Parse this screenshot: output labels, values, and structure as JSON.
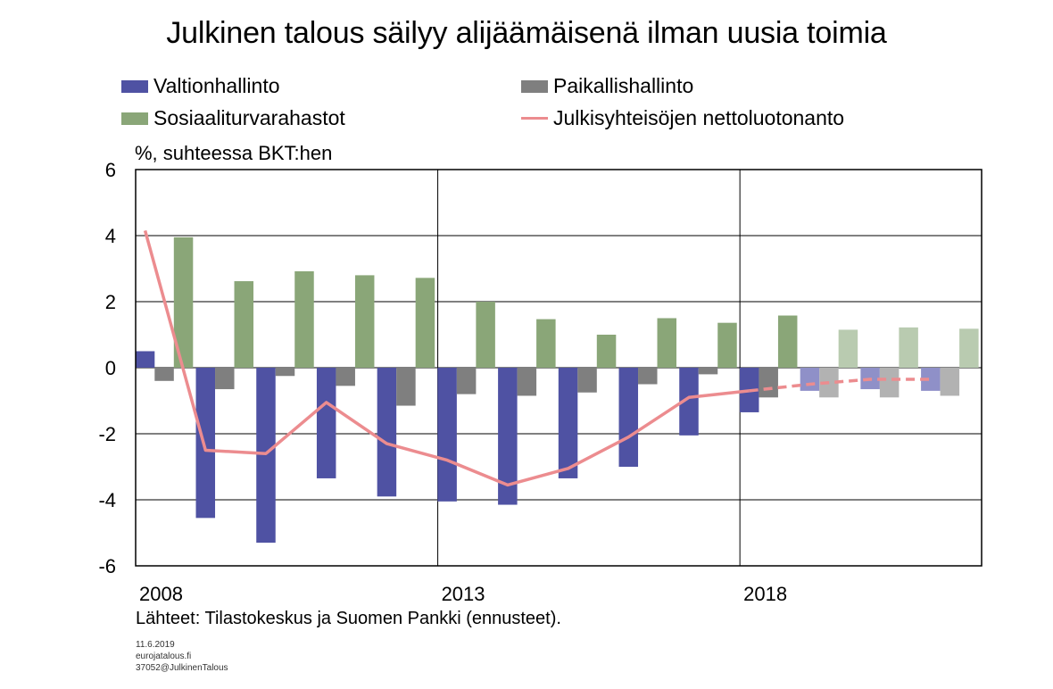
{
  "title": "Julkinen talous säilyy alijäämäisenä ilman uusia toimia",
  "unit_label": "%, suhteessa BKT:hen",
  "source": "Lähteet: Tilastokeskus ja Suomen Pankki (ennusteet).",
  "footer": [
    "11.6.2019",
    "eurojatalous.fi",
    "37052@JulkinenTalous"
  ],
  "colors": {
    "valtionhallinto": "#4f52a3",
    "valtionhallinto_forecast": "#8f90c8",
    "paikallishallinto": "#7f7f7f",
    "paikallishallinto_forecast": "#b2b2b2",
    "sosiaaliturvarahastot": "#8aa678",
    "sosiaaliturvarahastot_forecast": "#b9cbb0",
    "nettoluotonanto": "#ec8c8f",
    "grid": "#000000"
  },
  "legend": [
    {
      "label": "Valtionhallinto",
      "key": "valtionhallinto",
      "kind": "bar"
    },
    {
      "label": "Paikallishallinto",
      "key": "paikallishallinto",
      "kind": "bar"
    },
    {
      "label": "Sosiaaliturvarahastot",
      "key": "sosiaaliturvarahastot",
      "kind": "bar"
    },
    {
      "label": "Julkisyhteisöjen nettoluotonanto",
      "key": "nettoluotonanto",
      "kind": "line"
    }
  ],
  "chart_data": {
    "type": "bar",
    "title": "Julkinen talous säilyy alijäämäisenä ilman uusia toimia",
    "ylabel": "%, suhteessa BKT:hen",
    "ylim": [
      -6,
      6
    ],
    "yticks": [
      "6",
      "4",
      "2",
      "0",
      "-2",
      "-4",
      "-6"
    ],
    "ytick_values": [
      6,
      4,
      2,
      0,
      -2,
      -4,
      -6
    ],
    "categories": [
      "2008",
      "2009",
      "2010",
      "2011",
      "2012",
      "2013",
      "2014",
      "2015",
      "2016",
      "2017",
      "2018",
      "2019",
      "2020",
      "2021"
    ],
    "xtick_labels": [
      {
        "label": "2008",
        "category_index": 0
      },
      {
        "label": "2013",
        "category_index": 5
      },
      {
        "label": "2018",
        "category_index": 10
      }
    ],
    "forecast_from_index": 11,
    "grid": true,
    "legend_position": "top",
    "series": [
      {
        "name": "Valtionhallinto",
        "kind": "bar",
        "values": [
          0.5,
          -4.55,
          -5.3,
          -3.35,
          -3.9,
          -4.05,
          -4.15,
          -3.35,
          -3.0,
          -2.05,
          -1.35,
          -0.7,
          -0.65,
          -0.7
        ]
      },
      {
        "name": "Paikallishallinto",
        "kind": "bar",
        "values": [
          -0.4,
          -0.65,
          -0.25,
          -0.55,
          -1.15,
          -0.8,
          -0.85,
          -0.75,
          -0.5,
          -0.2,
          -0.9,
          -0.9,
          -0.9,
          -0.85
        ]
      },
      {
        "name": "Sosiaaliturvarahastot",
        "kind": "bar",
        "values": [
          3.95,
          2.62,
          2.92,
          2.8,
          2.72,
          2.0,
          1.47,
          1.0,
          1.5,
          1.36,
          1.58,
          1.15,
          1.22,
          1.18
        ]
      },
      {
        "name": "Julkisyhteisöjen nettoluotonanto",
        "kind": "line",
        "values": [
          4.15,
          -2.5,
          -2.6,
          -1.05,
          -2.3,
          -2.8,
          -3.55,
          -3.05,
          -2.1,
          -0.9,
          -0.7,
          -0.5,
          -0.35,
          -0.35
        ]
      }
    ]
  }
}
